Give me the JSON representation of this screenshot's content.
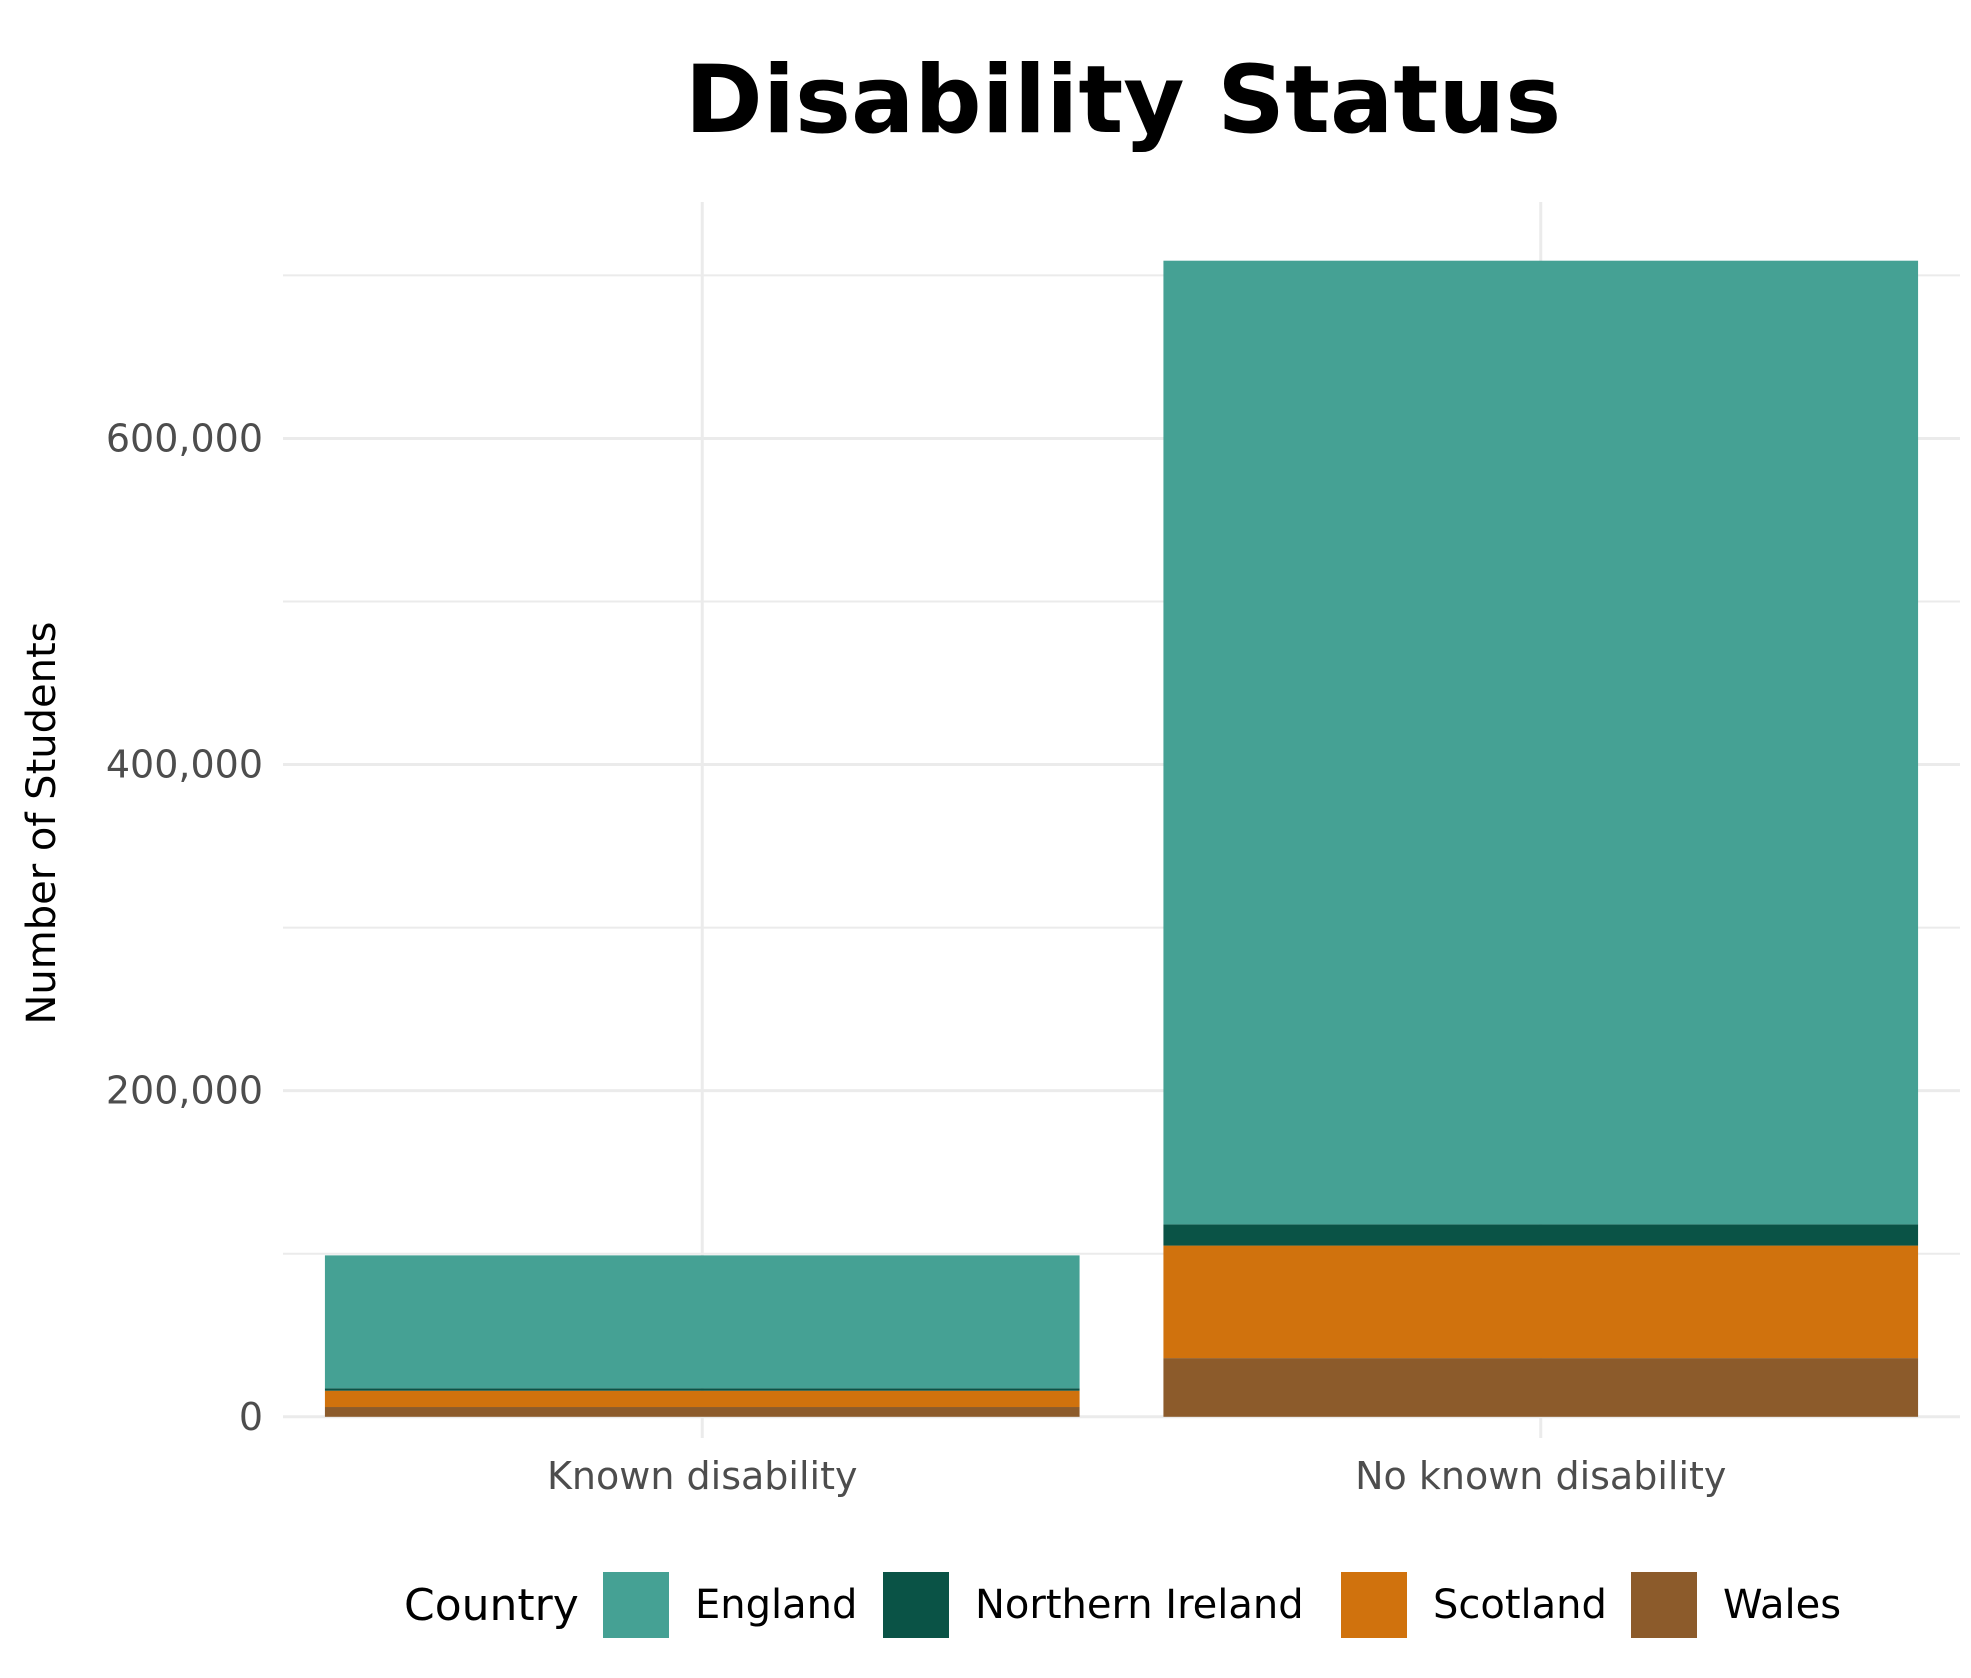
{
  "chart_data": {
    "type": "bar",
    "stacked": true,
    "title": "Disability Status",
    "xlabel": "",
    "ylabel": "Number of Students",
    "categories": [
      "Known disability",
      "No known disability"
    ],
    "ylim": [
      -13000,
      745000
    ],
    "yticks": [
      0,
      200000,
      400000,
      600000
    ],
    "ytick_labels": [
      "0",
      "200,000",
      "400,000",
      "600,000"
    ],
    "grid": true,
    "legend": {
      "title": "Country",
      "position": "bottom"
    },
    "series": [
      {
        "name": "Wales",
        "color": "#8c5b2b",
        "values": [
          6000,
          36000
        ]
      },
      {
        "name": "Scotland",
        "color": "#d0720d",
        "values": [
          10000,
          69000
        ]
      },
      {
        "name": "Northern Ireland",
        "color": "#0a5346",
        "values": [
          1500,
          13000
        ]
      },
      {
        "name": "England",
        "color": "#45a194",
        "values": [
          81500,
          591000
        ]
      }
    ],
    "legend_order": [
      "England",
      "Northern Ireland",
      "Scotland",
      "Wales"
    ]
  }
}
